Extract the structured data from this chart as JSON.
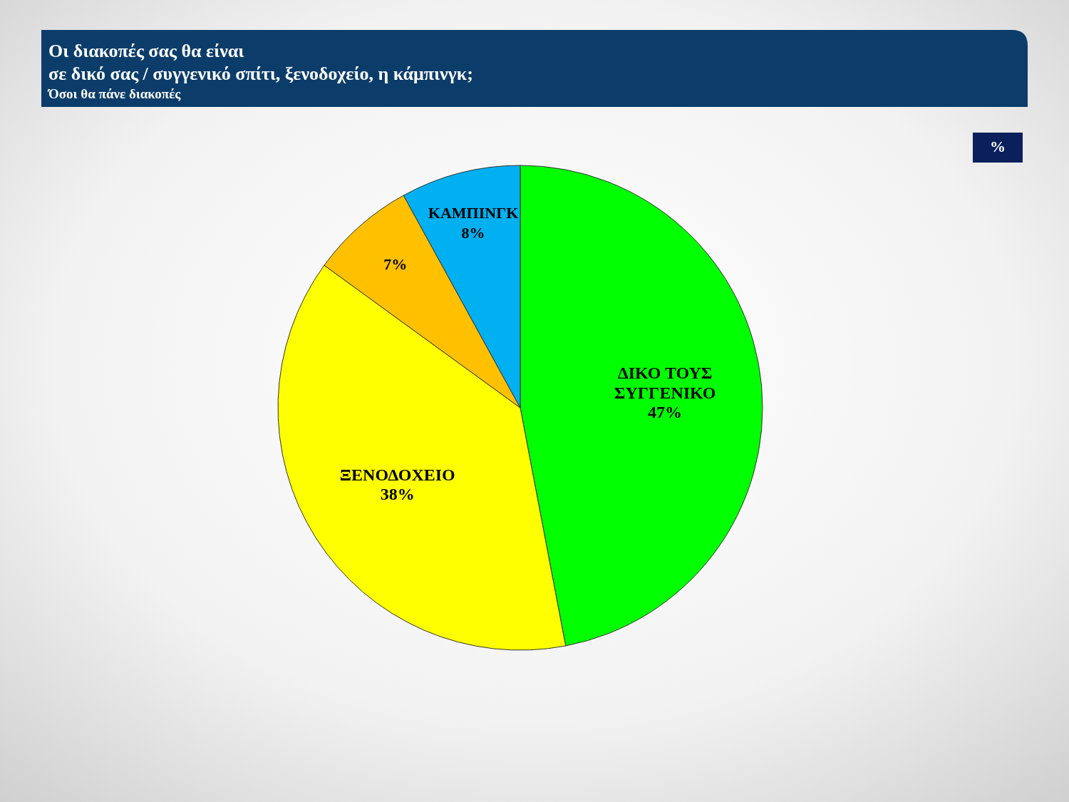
{
  "chart_data": {
    "type": "pie",
    "title": "Οι διακοπές σας θα είναι\nσε δικό σας / συγγενικό σπίτι, ξενοδοχείο, η κάμπινγκ;",
    "subtitle": "Όσοι θα πάνε διακοπές",
    "annotations": [
      "%"
    ],
    "categories": [
      "ΔΙΚΟ ΤΟΥΣ ΣΥΓΓΕΝΙΚΟ",
      "ΞΕΝΟΔΟΧΕΙΟ",
      null,
      "ΚΑΜΠΙΝΓΚ"
    ],
    "values": [
      47,
      38,
      7,
      8
    ],
    "colors": [
      "#00ff00",
      "#ffff00",
      "#ffc000",
      "#00b0f0"
    ],
    "value_labels": [
      "47%",
      "38%",
      "7%",
      "8%"
    ]
  }
}
